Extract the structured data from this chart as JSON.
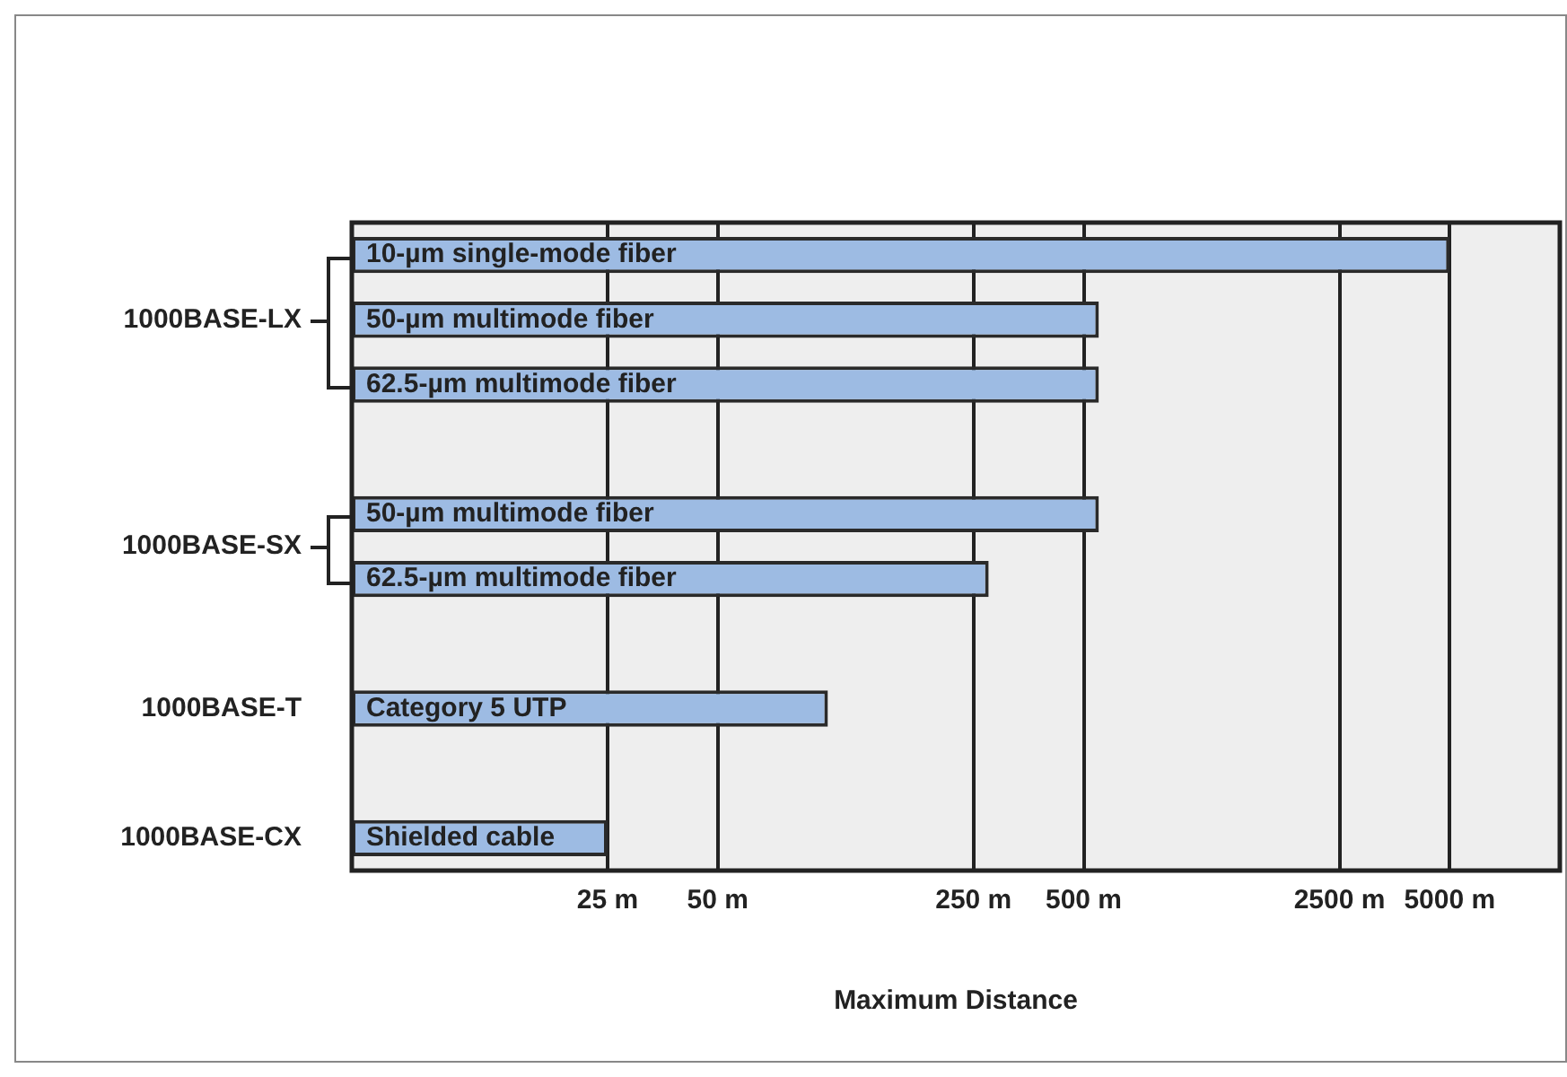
{
  "chart_data": {
    "type": "bar",
    "orientation": "horizontal",
    "log": "x",
    "xlabel": "Maximum Distance",
    "categories": [
      "10-µm single-mode fiber",
      "50-µm multimode fiber",
      "62.5-µm multimode fiber",
      null,
      "50-µm multimode fiber",
      "62.5-µm multimode fiber",
      null,
      "Category 5 UTP",
      null,
      "Shielded cable"
    ],
    "values": [
      5000,
      550,
      550,
      null,
      550,
      275,
      null,
      100,
      null,
      25
    ],
    "color": "#9dbbe3",
    "annotations": [
      "1000BASE-LX",
      "1000BASE-SX",
      "1000BASE-T",
      "1000BASE-CX"
    ],
    "xlim": [
      5,
      10000
    ],
    "xticks": [
      {
        "value": 25,
        "label": "25 m"
      },
      {
        "value": 50,
        "label": "50 m"
      },
      {
        "value": 250,
        "label": "250 m"
      },
      {
        "value": 500,
        "label": "500 m"
      },
      {
        "value": 2500,
        "label": "2500 m"
      },
      {
        "value": 5000,
        "label": "5000 m"
      }
    ],
    "grid": "x",
    "tick_labels": "x"
  }
}
